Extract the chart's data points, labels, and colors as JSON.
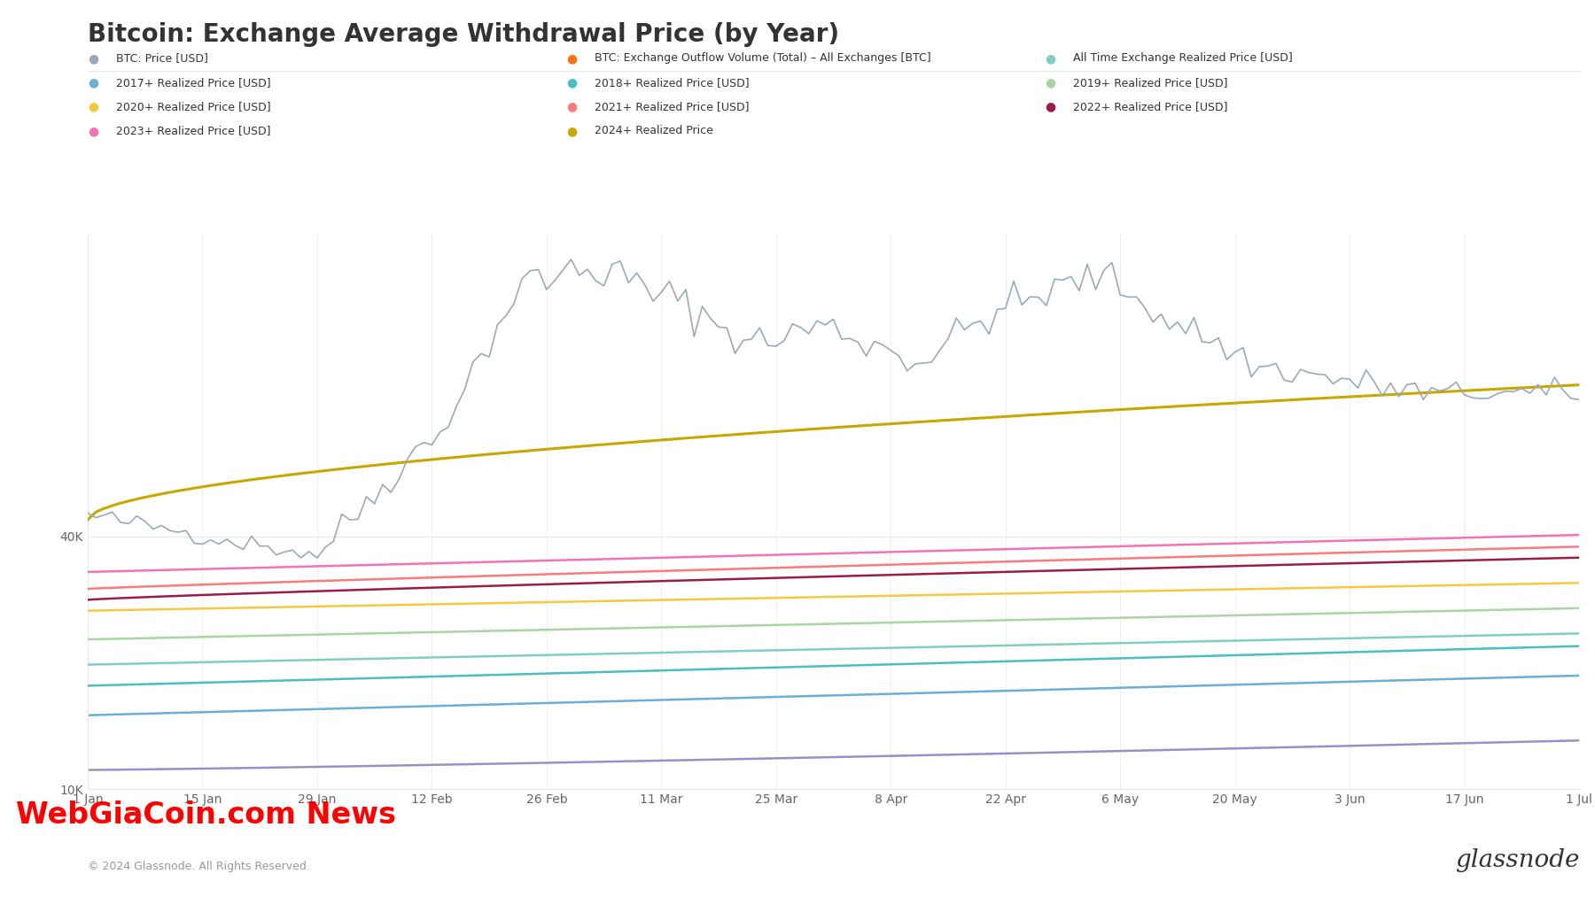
{
  "title": "Bitcoin: Exchange Average Withdrawal Price (by Year)",
  "x_labels": [
    "1 Jan",
    "15 Jan",
    "29 Jan",
    "12 Feb",
    "26 Feb",
    "11 Mar",
    "25 Mar",
    "8 Apr",
    "22 Apr",
    "6 May",
    "20 May",
    "3 Jun",
    "17 Jun",
    "1 Jul"
  ],
  "x_positions": [
    0,
    14,
    28,
    42,
    56,
    70,
    84,
    98,
    112,
    126,
    140,
    154,
    168,
    182
  ],
  "n_points": 183,
  "ytick_vals": [
    10000,
    40000
  ],
  "ytick_labels": [
    "10K",
    "40K"
  ],
  "y_min": 10000,
  "y_max": 76000,
  "bg_color": "#ffffff",
  "text_color": "#333333",
  "grid_color": "#e8e8e8",
  "source_text": "© 2024 Glassnode. All Rights Reserved.",
  "watermark_text": "WebGiaCoin.com News",
  "brand_text": "glassnode",
  "legend_rows": [
    [
      {
        "label": "BTC: Price [USD]",
        "color": "#9baab5",
        "lw": 1.2
      },
      {
        "label": "BTC: Exchange Outflow Volume (Total) – All Exchanges [BTC]",
        "color": "#f97316",
        "lw": 1.5
      },
      {
        "label": "All Time Exchange Realized Price [USD]",
        "color": "#7ecec4",
        "lw": 1.5
      }
    ],
    [
      {
        "label": "2017+ Realized Price [USD]",
        "color": "#6baed6",
        "lw": 1.5
      },
      {
        "label": "2018+ Realized Price [USD]",
        "color": "#4bbfbf",
        "lw": 1.5
      },
      {
        "label": "2019+ Realized Price [USD]",
        "color": "#a8d5a2",
        "lw": 1.5
      }
    ],
    [
      {
        "label": "2020+ Realized Price [USD]",
        "color": "#f5c842",
        "lw": 1.5
      },
      {
        "label": "2021+ Realized Price [USD]",
        "color": "#f97b7b",
        "lw": 1.5
      },
      {
        "label": "2022+ Realized Price [USD]",
        "color": "#9b1b4b",
        "lw": 1.5
      }
    ],
    [
      {
        "label": "2023+ Realized Price [USD]",
        "color": "#f472b6",
        "lw": 1.5
      },
      {
        "label": "2024+ Realized Price",
        "color": "#c8a800",
        "lw": 2.0
      }
    ]
  ]
}
